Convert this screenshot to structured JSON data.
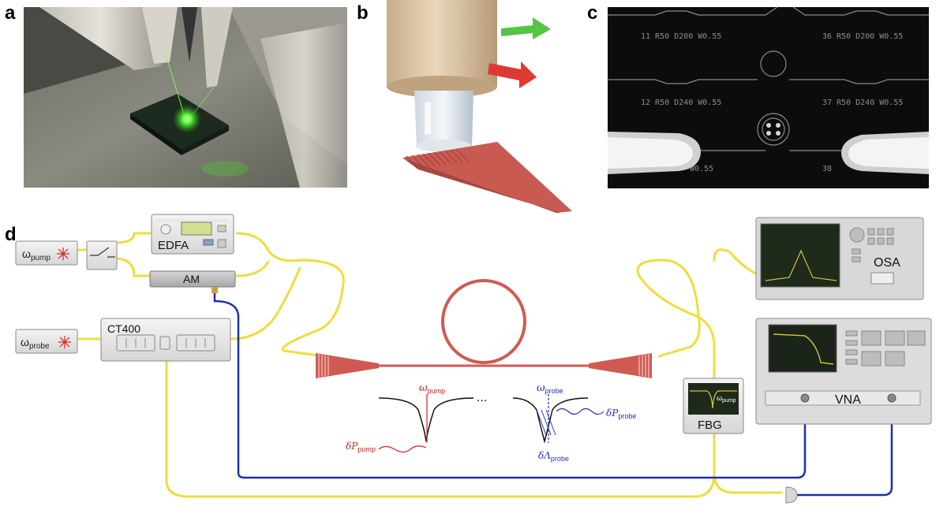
{
  "panels": {
    "a": "a",
    "b": "b",
    "c": "c",
    "d": "d"
  },
  "microscope": {
    "rows": [
      [
        "11 R50 D200 W0.55",
        "36 R50 D200 W0.55"
      ],
      [
        "12 R50 D240 W0.55",
        "37 R50 D240 W0.55"
      ],
      [
        "W0.55",
        "38"
      ]
    ]
  },
  "instruments": {
    "pump_laser": {
      "symbol": "ω",
      "sub": "pump"
    },
    "probe_laser": {
      "symbol": "ω",
      "sub": "probe"
    },
    "edfa": "EDFA",
    "am": "AM",
    "ct400": "CT400",
    "osa": "OSA",
    "vna": "VNA",
    "fbg": "FBG",
    "fbg_trace": {
      "symbol": "ω",
      "sub": "pump"
    }
  },
  "resonance": {
    "omega_pump": {
      "symbol": "ω",
      "sub": "pump"
    },
    "omega_probe": {
      "symbol": "ω",
      "sub": "probe"
    },
    "delta_p_pump": {
      "symbol": "δP",
      "sub": "pump"
    },
    "delta_p_probe": {
      "symbol": "δP",
      "sub": "probe"
    },
    "delta_lambda_probe": {
      "symbol": "δΛ",
      "sub": "probe"
    },
    "ellipsis": "..."
  },
  "colors": {
    "fiber": "#f2dc3c",
    "rf_cable": "#1a2fb0",
    "waveguide": "#d05a52",
    "pump": "#d42020",
    "probe": "#2230c0"
  }
}
